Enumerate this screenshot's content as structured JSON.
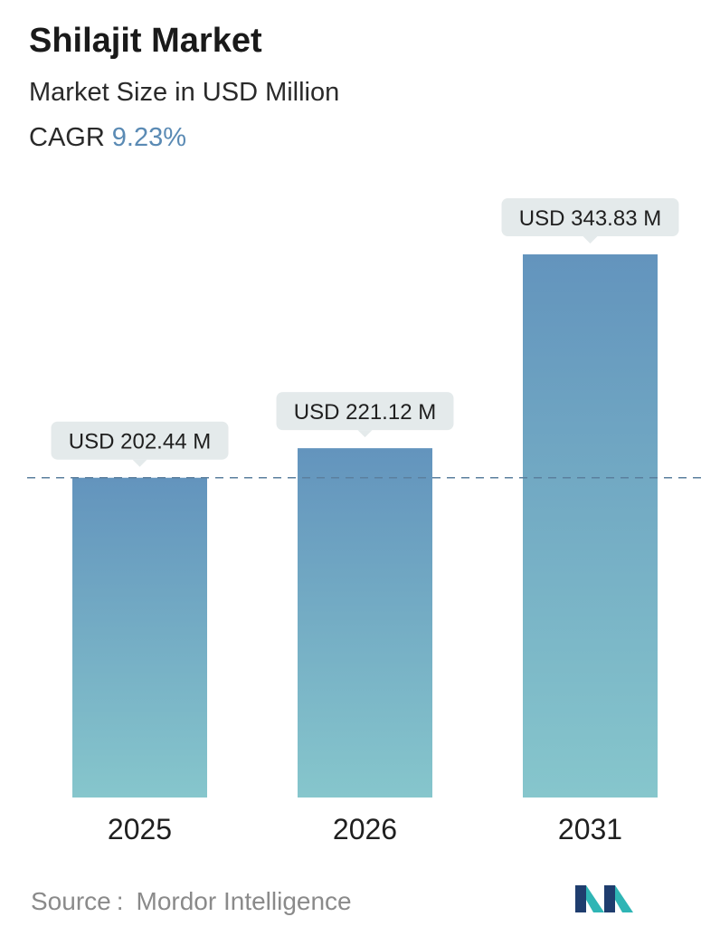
{
  "header": {
    "title": "Shilajit Market",
    "subtitle": "Market Size in USD Million",
    "cagr_label": "CAGR",
    "cagr_value": "9.23%"
  },
  "chart_data": {
    "type": "bar",
    "title": "Shilajit Market",
    "subtitle": "Market Size in USD Million",
    "categories": [
      "2025",
      "2026",
      "2031"
    ],
    "values": [
      202.44,
      221.12,
      343.83
    ],
    "data_labels": [
      "USD 202.44 M",
      "USD 221.12 M",
      "USD 343.83 M"
    ],
    "unit": "USD Million",
    "ylim": [
      0,
      343.83
    ],
    "reference_line": {
      "value": 202.44,
      "style": "dashed"
    },
    "grid": false,
    "legend": "none",
    "colors": {
      "bar_top": "#6394bd",
      "bar_bottom": "#86c6cc",
      "label_bg": "#e4eaeb",
      "reference_line": "#5b7f9e"
    }
  },
  "footer": {
    "source_label": "Source",
    "source_name": "Mordor Intelligence",
    "logo": "mordor-intelligence-logo",
    "logo_colors": [
      "#1f3d6e",
      "#2fb5b5"
    ]
  }
}
